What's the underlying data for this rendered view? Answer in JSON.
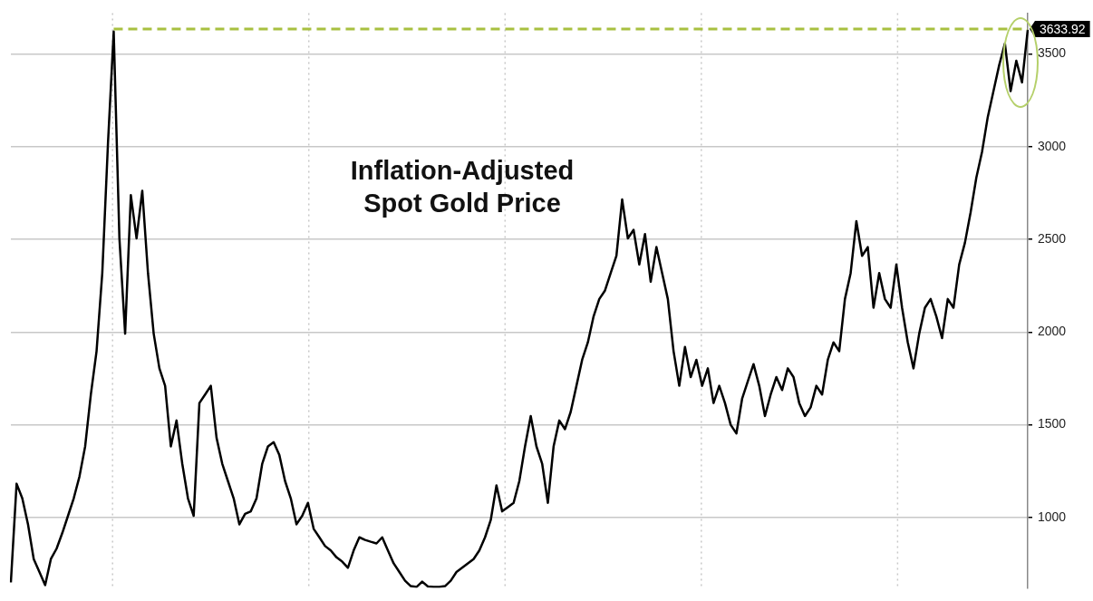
{
  "chart_data": {
    "type": "line",
    "title": "Inflation-Adjusted\nSpot Gold Price",
    "categories": [
      null,
      null,
      null,
      null,
      null,
      null,
      null,
      null,
      null,
      null,
      null,
      null,
      null,
      null,
      null,
      null,
      null,
      null,
      null,
      null,
      null,
      null,
      null,
      null,
      null,
      null,
      null,
      null,
      null,
      null,
      null,
      null,
      null,
      null,
      null,
      null,
      null,
      null,
      null,
      null,
      null,
      null,
      null,
      null,
      null,
      null,
      null,
      null,
      null,
      null,
      null,
      null,
      null,
      null,
      null,
      null,
      null,
      null,
      null,
      null,
      null,
      null,
      null,
      null,
      null,
      null,
      null,
      null,
      null,
      null,
      null,
      null,
      null,
      null,
      null,
      null,
      null,
      null,
      null,
      null,
      null,
      null,
      null,
      null,
      null,
      null,
      null,
      null,
      null,
      null,
      null,
      null,
      null,
      null,
      null,
      null,
      null,
      null,
      null,
      null,
      null,
      null,
      null,
      null,
      null,
      null,
      null,
      null,
      null,
      null,
      null,
      null,
      null,
      null,
      null,
      null,
      null,
      null,
      null,
      null,
      null,
      null,
      null,
      null,
      null,
      null,
      null,
      null,
      null,
      null,
      null,
      null,
      null,
      null,
      null,
      null,
      null,
      null,
      null,
      null,
      null,
      null,
      null,
      null,
      null,
      null,
      null,
      null,
      null,
      null,
      null,
      null,
      null,
      null,
      null,
      null,
      null,
      null,
      null,
      null,
      null,
      null,
      null,
      null,
      null,
      null,
      null,
      null,
      null,
      null,
      null,
      null,
      null,
      null,
      null,
      null,
      null,
      null,
      null
    ],
    "series": [
      {
        "color": "#000000",
        "values": [
          650,
          1182,
          1103,
          963,
          776,
          706,
          635,
          776,
          832,
          916,
          1009,
          1103,
          1220,
          1383,
          1663,
          1897,
          2318,
          3019,
          3620,
          2505,
          1991,
          2738,
          2505,
          2762,
          2318,
          1991,
          1804,
          1710,
          1383,
          1523,
          1290,
          1103,
          1009,
          1617,
          1663,
          1710,
          1430,
          1290,
          1196,
          1103,
          963,
          1019,
          1033,
          1103,
          1290,
          1383,
          1406,
          1336,
          1196,
          1103,
          963,
          1009,
          1079,
          939,
          893,
          846,
          822,
          785,
          762,
          729,
          822,
          893,
          879,
          869,
          860,
          893,
          822,
          753,
          706,
          659,
          630,
          625,
          654,
          628,
          625,
          625,
          630,
          659,
          706,
          729,
          753,
          776,
          822,
          893,
          986,
          1173,
          1033,
          1056,
          1079,
          1196,
          1383,
          1547,
          1383,
          1290,
          1079,
          1383,
          1523,
          1476,
          1570,
          1710,
          1850,
          1944,
          2084,
          2178,
          2224,
          2318,
          2411,
          2715,
          2505,
          2551,
          2364,
          2528,
          2271,
          2458,
          2318,
          2178,
          1897,
          1710,
          1920,
          1757,
          1850,
          1710,
          1804,
          1617,
          1710,
          1617,
          1500,
          1453,
          1640,
          1734,
          1827,
          1710,
          1547,
          1663,
          1757,
          1687,
          1804,
          1757,
          1617,
          1547,
          1594,
          1710,
          1663,
          1850,
          1944,
          1897,
          2178,
          2318,
          2598,
          2411,
          2458,
          2131,
          2318,
          2178,
          2131,
          2364,
          2131,
          1944,
          1804,
          1991,
          2131,
          2178,
          2084,
          1967,
          2178,
          2131,
          2364,
          2481,
          2645,
          2832,
          2972,
          3159,
          3299,
          3439,
          3556,
          3299,
          3463,
          3346,
          3630
        ]
      }
    ],
    "ylim": [
      620,
      3720
    ],
    "yticks": [
      1000,
      1500,
      2000,
      2500,
      3000,
      3500
    ],
    "grid": true,
    "legend": false,
    "tick_labels": "y",
    "ref_lines": [
      {
        "axis": "y",
        "value": 3633.92,
        "label": "3633.92",
        "color": "#a8c040",
        "line_style": "dashed"
      }
    ]
  }
}
